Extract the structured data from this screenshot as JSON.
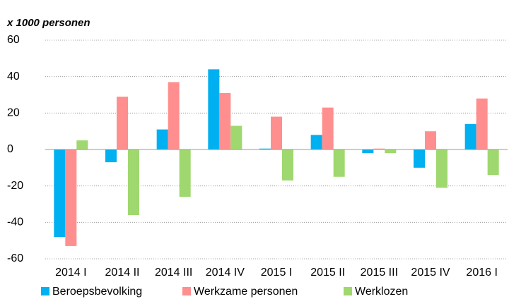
{
  "chart_data": {
    "type": "bar",
    "title": "x 1000 personen",
    "categories": [
      "2014 I",
      "2014 II",
      "2014 III",
      "2014 IV",
      "2015 I",
      "2015 II",
      "2015 III",
      "2015 IV",
      "2016 I"
    ],
    "series": [
      {
        "name": "Beroepsbevolking",
        "color": "#00b0f0",
        "values": [
          -48,
          -7,
          11,
          44,
          0.5,
          8,
          -2,
          -10,
          14
        ]
      },
      {
        "name": "Werkzame personen",
        "color": "#ff8f8f",
        "values": [
          -53,
          29,
          37,
          31,
          18,
          23,
          0.5,
          10,
          28
        ]
      },
      {
        "name": "Werklozen",
        "color": "#9fd86e",
        "values": [
          5,
          -36,
          -26,
          13,
          -17,
          -15,
          -2,
          -21,
          -14
        ]
      }
    ],
    "ylim": [
      -60,
      60
    ],
    "yticks": [
      -60,
      -40,
      -20,
      0,
      20,
      40,
      60
    ],
    "grid": true,
    "legend": "bottom"
  }
}
